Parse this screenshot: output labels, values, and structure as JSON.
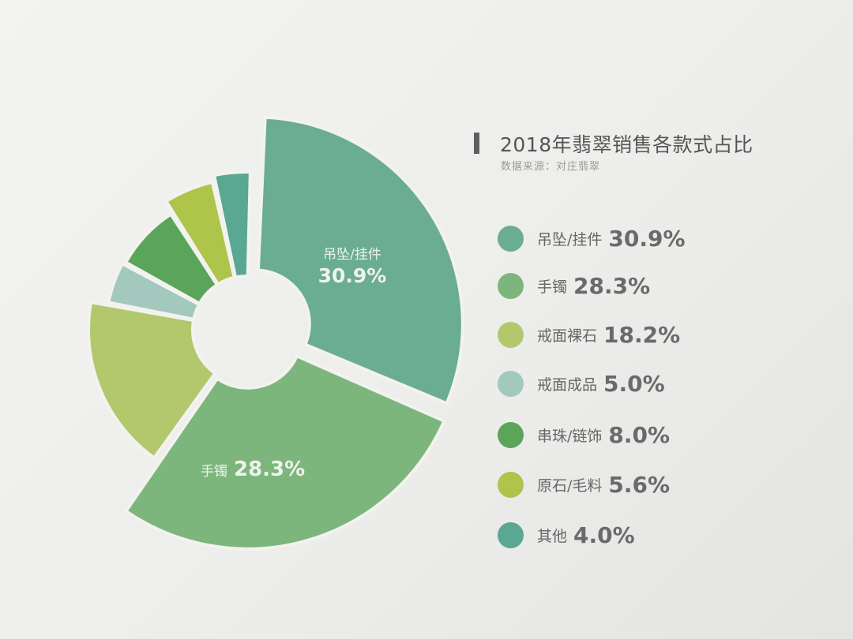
{
  "chart_data": {
    "type": "pie",
    "variant": "donut-variable-radius",
    "title": "2018年翡翠销售各款式占比",
    "subtitle": "数据来源：对庄翡翠",
    "categories": [
      "吊坠/挂件",
      "手镯",
      "戒面裸石",
      "戒面成品",
      "串珠/链饰",
      "原石/毛料",
      "其他"
    ],
    "values": [
      30.9,
      28.3,
      18.2,
      5.0,
      8.0,
      5.6,
      4.0
    ],
    "unit": "%",
    "colors": [
      "#6aad93",
      "#7db67c",
      "#b3c86c",
      "#a3c8bd",
      "#5aa55a",
      "#aec44a",
      "#5aa792"
    ],
    "legend_position": "right",
    "inline_labels": [
      {
        "category": "吊坠/挂件",
        "value": "30.9%"
      },
      {
        "category": "手镯",
        "value": "28.3%"
      }
    ]
  },
  "title": {
    "text": "2018年翡翠销售各款式占比",
    "source": "数据来源：对庄翡翠"
  },
  "legend": [
    {
      "label": "吊坠/挂件",
      "value": "30.9%",
      "color": "#6aad93"
    },
    {
      "label": "手镯",
      "value": "28.3%",
      "color": "#7db67c"
    },
    {
      "label": "戒面裸石",
      "value": "18.2%",
      "color": "#b3c86c"
    },
    {
      "label": "戒面成品",
      "value": "5.0%",
      "color": "#a3c8bd"
    },
    {
      "label": "串珠/链饰",
      "value": "8.0%",
      "color": "#5aa55a"
    },
    {
      "label": "原石/毛料",
      "value": "5.6%",
      "color": "#aec44a"
    },
    {
      "label": "其他",
      "value": "4.0%",
      "color": "#5aa792"
    }
  ],
  "slice_labels": {
    "pendant": {
      "name": "吊坠/挂件",
      "value": "30.9%"
    },
    "bracelet": {
      "name": "手镯",
      "value": "28.3%"
    }
  }
}
